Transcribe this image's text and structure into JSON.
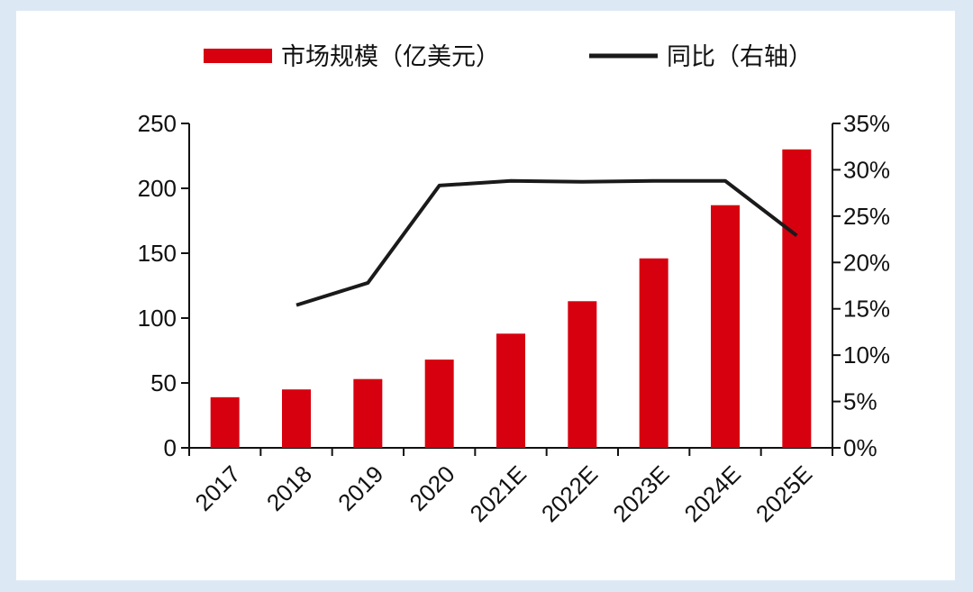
{
  "chart_data": {
    "type": "bar",
    "categories": [
      "2017",
      "2018",
      "2019",
      "2020",
      "2021E",
      "2022E",
      "2023E",
      "2024E",
      "2025E"
    ],
    "series": [
      {
        "name": "市场规模（亿美元）",
        "kind": "bar",
        "axis": "left",
        "color": "#d7000f",
        "values": [
          39,
          45,
          53,
          68,
          88,
          113,
          146,
          187,
          230
        ]
      },
      {
        "name": "同比（右轴）",
        "kind": "line",
        "axis": "right",
        "color": "#1a1a1a",
        "values": [
          null,
          15.4,
          17.8,
          28.3,
          28.8,
          28.7,
          28.8,
          28.8,
          22.9
        ]
      }
    ],
    "y_left": {
      "min": 0,
      "max": 250,
      "ticks": [
        0,
        50,
        100,
        150,
        200,
        250
      ]
    },
    "y_right": {
      "min": 0,
      "max": 35,
      "ticks": [
        "0%",
        "5%",
        "10%",
        "15%",
        "20%",
        "25%",
        "30%",
        "35%"
      ],
      "values": [
        0,
        5,
        10,
        15,
        20,
        25,
        30,
        35
      ]
    },
    "legend_position": "top",
    "grid": false
  }
}
